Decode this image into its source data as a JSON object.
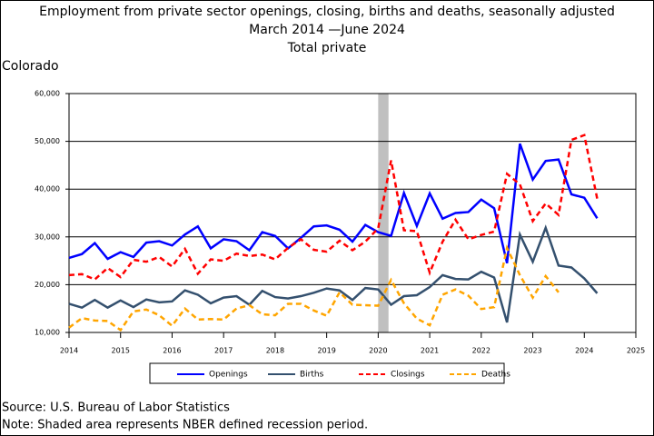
{
  "chart_data": {
    "type": "line",
    "title": "Employment from private sector openings, closing, births and deaths, seasonally adjusted",
    "subtitle": "March 2014 —June 2024",
    "subtitle2": "Total private",
    "region": "Colorado",
    "source": "Source: U.S. Bureau of Labor Statistics",
    "note": "Note: Shaded area represents NBER defined recession period.",
    "recession": [
      2020,
      2020.2
    ],
    "x": [
      2014,
      2014.25,
      2014.5,
      2014.75,
      2015,
      2015.25,
      2015.5,
      2015.75,
      2016,
      2016.25,
      2016.5,
      2016.75,
      2017,
      2017.25,
      2017.5,
      2017.75,
      2018,
      2018.25,
      2018.5,
      2018.75,
      2019,
      2019.25,
      2019.5,
      2019.75,
      2020,
      2020.25,
      2020.5,
      2020.75,
      2021,
      2021.25,
      2021.5,
      2021.75,
      2022,
      2022.25,
      2022.5,
      2022.75,
      2023,
      2023.25,
      2023.5,
      2023.75,
      2024,
      2024.25
    ],
    "series": [
      {
        "name": "Openings",
        "color": "#0000ff",
        "dash": false,
        "values": [
          25600,
          26400,
          28700,
          25400,
          26800,
          25800,
          28800,
          29100,
          28200,
          30500,
          32200,
          27600,
          29500,
          29100,
          27200,
          31000,
          30200,
          27600,
          29800,
          32200,
          32400,
          31500,
          29000,
          32500,
          31000,
          30200,
          39200,
          32300,
          39100,
          33800,
          35000,
          35200,
          37800,
          36000,
          24500,
          49500,
          42000,
          45900,
          46200,
          38900,
          38200,
          33900
        ]
      },
      {
        "name": "Births",
        "color": "#34506e",
        "dash": false,
        "values": [
          16000,
          15200,
          16800,
          15200,
          16700,
          15300,
          16900,
          16300,
          16500,
          18800,
          17900,
          16100,
          17300,
          17600,
          15800,
          18700,
          17400,
          17100,
          17600,
          18300,
          19200,
          18800,
          16800,
          19300,
          19000,
          15800,
          17600,
          17800,
          19500,
          22000,
          21200,
          21100,
          22700,
          21500,
          12100,
          30500,
          24800,
          31900,
          24000,
          23600,
          21300,
          18200
        ]
      },
      {
        "name": "Closings",
        "color": "#ff0000",
        "dash": true,
        "values": [
          22000,
          22200,
          21100,
          23500,
          21600,
          25200,
          24800,
          25800,
          23800,
          27500,
          22300,
          25300,
          25000,
          26500,
          26000,
          26300,
          25300,
          27700,
          29500,
          27300,
          26900,
          29200,
          27200,
          29000,
          31800,
          46000,
          31400,
          31200,
          22500,
          29000,
          33600,
          29500,
          30400,
          31100,
          43200,
          41000,
          33300,
          37000,
          34600,
          50300,
          51300,
          38000
        ]
      },
      {
        "name": "Deaths",
        "color": "#ffa500",
        "dash": true,
        "values": [
          11000,
          13000,
          12500,
          12400,
          10500,
          14400,
          14800,
          13600,
          11400,
          15000,
          12700,
          12800,
          12700,
          15000,
          15700,
          13800,
          13600,
          16000,
          16000,
          14600,
          13500,
          18400,
          15800,
          15700,
          15600,
          21000,
          16100,
          12900,
          11500,
          17900,
          19000,
          17700,
          14900,
          15300,
          27700,
          22000,
          17300,
          21800,
          18400,
          null,
          null,
          null
        ]
      }
    ],
    "xlim": [
      2014,
      2025
    ],
    "xticks": [
      2014,
      2015,
      2016,
      2017,
      2018,
      2019,
      2020,
      2021,
      2022,
      2023,
      2024,
      2025
    ],
    "ylim": [
      10000,
      60000
    ],
    "yticks": [
      {
        "value": 10000,
        "label": "10,000"
      },
      {
        "value": 20000,
        "label": "20,000"
      },
      {
        "value": 30000,
        "label": "30,000"
      },
      {
        "value": 40000,
        "label": "40,000"
      },
      {
        "value": 50000,
        "label": "50,000"
      },
      {
        "value": 60000,
        "label": "60,000"
      }
    ],
    "grid": true
  }
}
